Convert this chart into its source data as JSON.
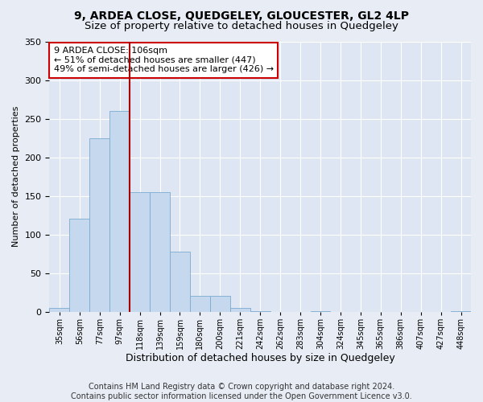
{
  "title": "9, ARDEA CLOSE, QUEDGELEY, GLOUCESTER, GL2 4LP",
  "subtitle": "Size of property relative to detached houses in Quedgeley",
  "xlabel": "Distribution of detached houses by size in Quedgeley",
  "ylabel": "Number of detached properties",
  "categories": [
    "35sqm",
    "56sqm",
    "77sqm",
    "97sqm",
    "118sqm",
    "139sqm",
    "159sqm",
    "180sqm",
    "200sqm",
    "221sqm",
    "242sqm",
    "262sqm",
    "283sqm",
    "304sqm",
    "324sqm",
    "345sqm",
    "365sqm",
    "386sqm",
    "407sqm",
    "427sqm",
    "448sqm"
  ],
  "values": [
    5,
    120,
    225,
    260,
    155,
    155,
    78,
    20,
    20,
    5,
    1,
    0,
    0,
    1,
    0,
    0,
    0,
    0,
    0,
    0,
    1
  ],
  "bar_color": "#c5d8ee",
  "bar_edge_color": "#7aabcf",
  "vline_x_index": 3,
  "vline_color": "#aa0000",
  "annotation_text": "9 ARDEA CLOSE: 106sqm\n← 51% of detached houses are smaller (447)\n49% of semi-detached houses are larger (426) →",
  "annotation_box_color": "#ffffff",
  "annotation_box_edge": "#cc0000",
  "ylim": [
    0,
    350
  ],
  "yticks": [
    0,
    50,
    100,
    150,
    200,
    250,
    300,
    350
  ],
  "background_color": "#e8edf5",
  "plot_bg_color": "#dde6f2",
  "footer": "Contains HM Land Registry data © Crown copyright and database right 2024.\nContains public sector information licensed under the Open Government Licence v3.0.",
  "title_fontsize": 10,
  "subtitle_fontsize": 9.5,
  "xlabel_fontsize": 9,
  "ylabel_fontsize": 8,
  "annotation_fontsize": 8,
  "footer_fontsize": 7
}
